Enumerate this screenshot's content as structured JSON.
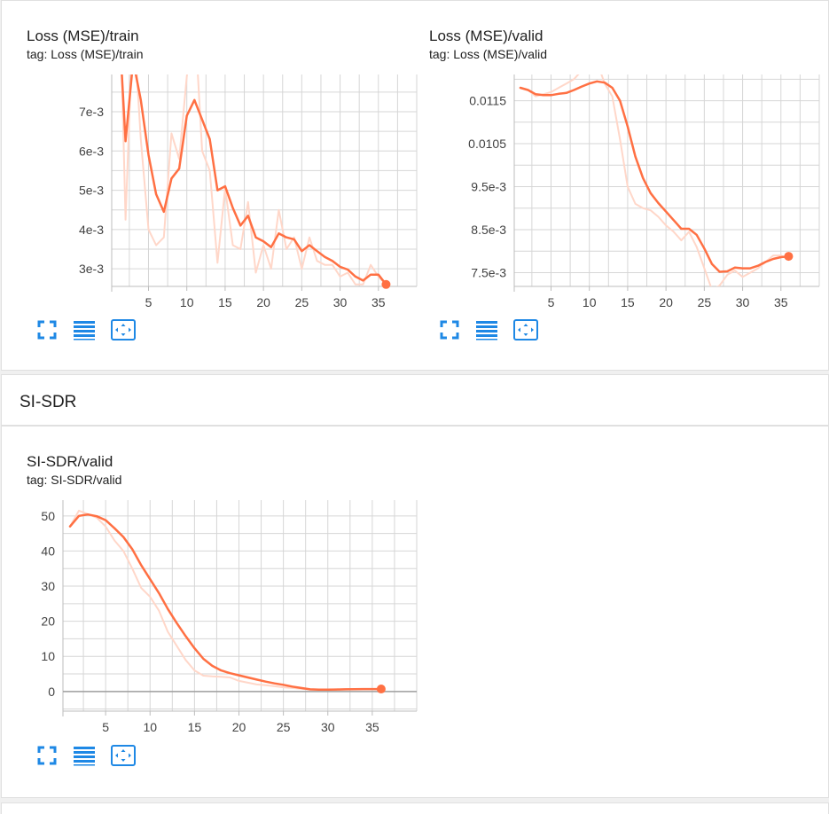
{
  "section_title": "SI-SDR",
  "colors": {
    "line": "#ff7043",
    "raw": "#ffd7c9",
    "grid": "#d6d6d6",
    "axis": "#bdbdbd",
    "zero": "#9e9e9e",
    "icon": "#1e88e5"
  },
  "toolbar": {
    "icons": [
      "fullscreen-icon",
      "data-table-icon",
      "fit-domain-icon"
    ]
  },
  "chart_data": [
    {
      "type": "line",
      "title": "Loss (MSE)/train",
      "tag": "tag: Loss (MSE)/train",
      "xlabel": "",
      "ylabel": "",
      "xlim": [
        0.2,
        40
      ],
      "ylim": [
        0.00255,
        0.00795
      ],
      "x_ticks": [
        5,
        10,
        15,
        20,
        25,
        30,
        35
      ],
      "x_tick_labels": [
        "5",
        "10",
        "15",
        "20",
        "25",
        "30",
        "35"
      ],
      "y_ticks": [
        0.003,
        0.004,
        0.005,
        0.006,
        0.007
      ],
      "y_tick_labels": [
        "3e-3",
        "4e-3",
        "5e-3",
        "6e-3",
        "7e-3"
      ],
      "grid": true,
      "series": [
        {
          "role": "raw",
          "x": [
            1,
            2,
            3,
            4,
            5,
            6,
            7,
            8,
            9,
            10,
            11,
            12,
            13,
            14,
            15,
            16,
            17,
            18,
            19,
            20,
            21,
            22,
            23,
            24,
            25,
            26,
            27,
            28,
            29,
            30,
            31,
            32,
            33,
            34,
            35,
            36
          ],
          "y": [
            0.0121,
            0.00425,
            0.0095,
            0.0063,
            0.004,
            0.0036,
            0.0038,
            0.00645,
            0.0058,
            0.0079,
            0.0095,
            0.006,
            0.0055,
            0.00315,
            0.00505,
            0.0036,
            0.0035,
            0.0047,
            0.0029,
            0.0036,
            0.003,
            0.0045,
            0.0035,
            0.0038,
            0.003,
            0.0038,
            0.0032,
            0.0031,
            0.0031,
            0.0028,
            0.0029,
            0.0026,
            0.0026,
            0.0031,
            0.0028,
            0.0026
          ]
        },
        {
          "role": "smoothed",
          "x": [
            1,
            2,
            3,
            4,
            5,
            6,
            7,
            8,
            9,
            10,
            11,
            12,
            13,
            14,
            15,
            16,
            17,
            18,
            19,
            20,
            21,
            22,
            23,
            24,
            25,
            26,
            27,
            28,
            29,
            30,
            31,
            32,
            33,
            34,
            35,
            36
          ],
          "y": [
            0.0098,
            0.00625,
            0.0083,
            0.0073,
            0.0059,
            0.0049,
            0.00445,
            0.0053,
            0.00555,
            0.0069,
            0.0073,
            0.0068,
            0.0063,
            0.005,
            0.0051,
            0.00455,
            0.0041,
            0.00435,
            0.0038,
            0.0037,
            0.00355,
            0.0039,
            0.0038,
            0.00375,
            0.00345,
            0.0036,
            0.00345,
            0.0033,
            0.0032,
            0.00305,
            0.00298,
            0.0028,
            0.0027,
            0.00285,
            0.00285,
            0.0026
          ]
        }
      ]
    },
    {
      "type": "line",
      "title": "Loss (MSE)/valid",
      "tag": "tag: Loss (MSE)/valid",
      "xlabel": "",
      "ylabel": "",
      "xlim": [
        0.2,
        40
      ],
      "ylim": [
        0.00718,
        0.01211
      ],
      "x_ticks": [
        5,
        10,
        15,
        20,
        25,
        30,
        35
      ],
      "x_tick_labels": [
        "5",
        "10",
        "15",
        "20",
        "25",
        "30",
        "35"
      ],
      "y_ticks": [
        0.0075,
        0.0085,
        0.0095,
        0.0105,
        0.0115
      ],
      "y_tick_labels": [
        "7.5e-3",
        "8.5e-3",
        "9.5e-3",
        "0.0105",
        "0.0115"
      ],
      "grid": true,
      "series": [
        {
          "role": "raw",
          "x": [
            1,
            2,
            3,
            4,
            5,
            6,
            7,
            8,
            9,
            10,
            11,
            12,
            13,
            14,
            15,
            16,
            17,
            18,
            19,
            20,
            21,
            22,
            23,
            24,
            25,
            26,
            27,
            28,
            29,
            30,
            31,
            32,
            33,
            34,
            35,
            36
          ],
          "y": [
            0.0118,
            0.01175,
            0.0116,
            0.01165,
            0.0117,
            0.0118,
            0.0119,
            0.012,
            0.0122,
            0.0122,
            0.0124,
            0.0119,
            0.0116,
            0.0106,
            0.0095,
            0.0091,
            0.009,
            0.00895,
            0.0088,
            0.0086,
            0.00845,
            0.00825,
            0.00845,
            0.0081,
            0.0076,
            0.0071,
            0.0072,
            0.00745,
            0.00755,
            0.0074,
            0.0075,
            0.0076,
            0.00775,
            0.0079,
            0.0079,
            0.0078
          ]
        },
        {
          "role": "smoothed",
          "x": [
            1,
            2,
            3,
            4,
            5,
            6,
            7,
            8,
            9,
            10,
            11,
            12,
            13,
            14,
            15,
            16,
            17,
            18,
            19,
            20,
            21,
            22,
            23,
            24,
            25,
            26,
            27,
            28,
            29,
            30,
            31,
            32,
            33,
            34,
            35,
            36
          ],
          "y": [
            0.0118,
            0.01175,
            0.01165,
            0.01163,
            0.01163,
            0.01166,
            0.01168,
            0.01175,
            0.01183,
            0.0119,
            0.01195,
            0.01192,
            0.0118,
            0.0115,
            0.0109,
            0.0102,
            0.0097,
            0.00935,
            0.00912,
            0.00892,
            0.00872,
            0.00852,
            0.00852,
            0.00838,
            0.00806,
            0.0077,
            0.00752,
            0.00753,
            0.00762,
            0.0076,
            0.0076,
            0.00766,
            0.00775,
            0.00782,
            0.00786,
            0.00788
          ]
        }
      ]
    },
    {
      "type": "line",
      "title": "SI-SDR/valid",
      "tag": "tag: SI-SDR/valid",
      "xlabel": "",
      "ylabel": "",
      "xlim": [
        0.2,
        40
      ],
      "ylim": [
        -5.6,
        54.5
      ],
      "x_ticks": [
        5,
        10,
        15,
        20,
        25,
        30,
        35
      ],
      "x_tick_labels": [
        "5",
        "10",
        "15",
        "20",
        "25",
        "30",
        "35"
      ],
      "y_ticks": [
        0,
        10,
        20,
        30,
        40,
        50
      ],
      "y_tick_labels": [
        "0",
        "10",
        "20",
        "30",
        "40",
        "50"
      ],
      "grid": true,
      "series": [
        {
          "role": "raw",
          "x": [
            1,
            2,
            3,
            4,
            5,
            6,
            7,
            8,
            9,
            10,
            11,
            12,
            13,
            14,
            15,
            16,
            17,
            18,
            19,
            20,
            21,
            22,
            23,
            24,
            25,
            26,
            27,
            28,
            29,
            30,
            31,
            32,
            33,
            34,
            35,
            36
          ],
          "y": [
            47,
            51.5,
            50.5,
            49.5,
            47,
            43,
            40,
            35,
            29.5,
            27,
            23,
            17,
            13,
            9,
            6,
            4.5,
            4.3,
            4.2,
            4,
            3,
            2.5,
            2,
            1.8,
            1.5,
            1.2,
            1,
            0.8,
            0.5,
            0.5,
            0.5,
            0.6,
            0.7,
            0.7,
            0.7,
            0.7,
            0.6
          ]
        },
        {
          "role": "smoothed",
          "x": [
            1,
            2,
            3,
            4,
            5,
            6,
            7,
            8,
            9,
            10,
            11,
            12,
            13,
            14,
            15,
            16,
            17,
            18,
            19,
            20,
            21,
            22,
            23,
            24,
            25,
            26,
            27,
            28,
            29,
            30,
            31,
            32,
            33,
            34,
            35,
            36
          ],
          "y": [
            47,
            50,
            50.4,
            49.9,
            48.8,
            46.5,
            44,
            40.5,
            36,
            32,
            28,
            23.5,
            19.5,
            15.8,
            12.3,
            9.3,
            7.3,
            6,
            5.2,
            4.6,
            4,
            3.4,
            2.8,
            2.3,
            1.9,
            1.4,
            1,
            0.6,
            0.5,
            0.5,
            0.55,
            0.6,
            0.65,
            0.7,
            0.7,
            0.7
          ]
        }
      ]
    }
  ]
}
